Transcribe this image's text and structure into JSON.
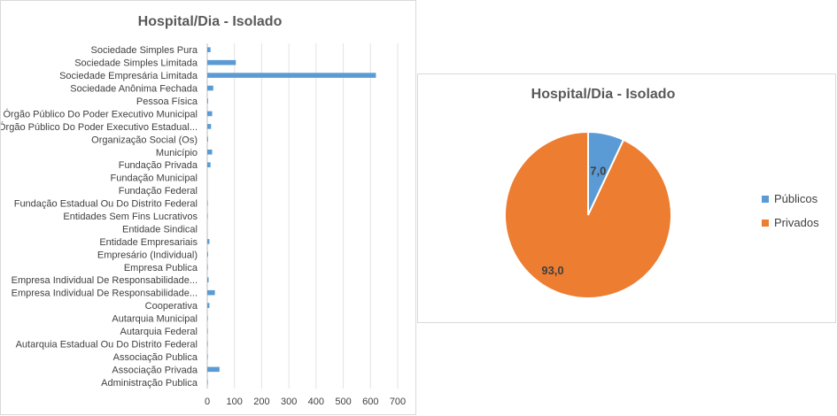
{
  "chart_data": [
    {
      "type": "bar",
      "orientation": "horizontal",
      "title": "Hospital/Dia - Isolado",
      "categories": [
        "Sociedade Simples Pura",
        "Sociedade Simples Limitada",
        "Sociedade Empresária Limitada",
        "Sociedade Anônima Fechada",
        "Pessoa Física",
        "Órgão Público Do Poder Executivo Municipal",
        "Órgão Público Do Poder Executivo Estadual...",
        "Organização Social (Os)",
        "Município",
        "Fundação Privada",
        "Fundação Municipal",
        "Fundação Federal",
        "Fundação Estadual Ou Do Distrito Federal",
        "Entidades Sem Fins Lucrativos",
        "Entidade Sindical",
        "Entidade Empresariais",
        "Empresário (Individual)",
        "Empresa Publica",
        "Empresa Individual De Responsabilidade...",
        "Empresa Individual De Responsabilidade...",
        "Cooperativa",
        "Autarquia Municipal",
        "Autarquia Federal",
        "Autarquia Estadual Ou Do Distrito Federal",
        "Associação Publica",
        "Associação Privada",
        "Administração Publica"
      ],
      "values": [
        12,
        105,
        620,
        22,
        3,
        18,
        14,
        3,
        18,
        12,
        0,
        0,
        2,
        2,
        0,
        8,
        3,
        2,
        5,
        28,
        8,
        2,
        2,
        2,
        2,
        45,
        2
      ],
      "xlim": [
        0,
        700
      ],
      "xticks": [
        0,
        100,
        200,
        300,
        400,
        500,
        600,
        700
      ],
      "color": "#5b9bd5",
      "grid": true
    },
    {
      "type": "pie",
      "title": "Hospital/Dia - Isolado",
      "labels": [
        "Públicos",
        "Privados"
      ],
      "values": [
        7.0,
        93.0
      ],
      "data_labels": [
        "7,0",
        "93,0"
      ],
      "colors": [
        "#5b9bd5",
        "#ed7d31"
      ],
      "legend": "right"
    }
  ]
}
